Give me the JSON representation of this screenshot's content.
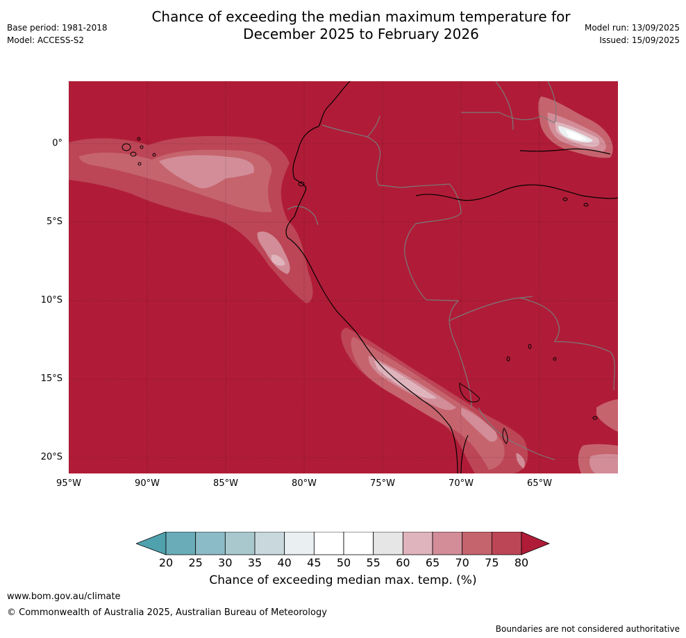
{
  "title": {
    "line1": "Chance of exceeding the median maximum temperature for",
    "line2": "December 2025 to February 2026"
  },
  "meta": {
    "base_period": "Base period: 1981-2018",
    "model": "Model: ACCESS-S2",
    "model_run": "Model run: 13/09/2025",
    "issued": "Issued: 15/09/2025"
  },
  "map": {
    "lat_labels": [
      "0°",
      "5°S",
      "10°S",
      "15°S",
      "20°S"
    ],
    "lon_labels": [
      "95°W",
      "90°W",
      "85°W",
      "80°W",
      "75°W",
      "70°W",
      "65°W"
    ],
    "background_color": "#b01c37"
  },
  "colorbar": {
    "ticks": [
      "20",
      "25",
      "30",
      "35",
      "40",
      "45",
      "50",
      "55",
      "60",
      "65",
      "70",
      "75",
      "80"
    ],
    "colors": [
      "#6aadb9",
      "#8bbbc6",
      "#a9c8ce",
      "#c9d8dd",
      "#eaeff1",
      "#ffffff",
      "#ffffff",
      "#e7e6e7",
      "#dfb4bd",
      "#d28d98",
      "#c6646e",
      "#bc4656"
    ],
    "low_extend_color": "#4fa1ad",
    "high_extend_color": "#b01c37",
    "label": "Chance of exceeding median max. temp. (%)"
  },
  "footer": {
    "website": "www.bom.gov.au/climate",
    "copyright": "© Commonwealth of Australia 2025, Australian Bureau of Meteorology",
    "disclaimer": "Boundaries are not considered authoritative"
  }
}
